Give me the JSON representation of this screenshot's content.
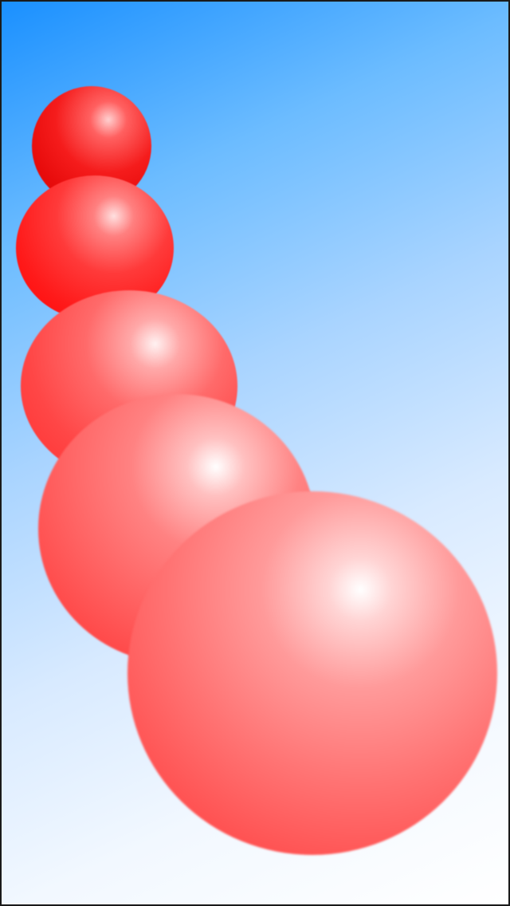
{
  "scene": {
    "balls": [
      {
        "name": "ball-1",
        "color": "#e81010"
      },
      {
        "name": "ball-2",
        "color": "#ff1a1a"
      },
      {
        "name": "ball-3",
        "color": "#ff4a4a"
      },
      {
        "name": "ball-4",
        "color": "#ff6060"
      },
      {
        "name": "ball-5",
        "color": "#ff6a6a"
      }
    ],
    "background": {
      "top_color": "#1a90ff",
      "bottom_color": "#ffffff"
    }
  }
}
